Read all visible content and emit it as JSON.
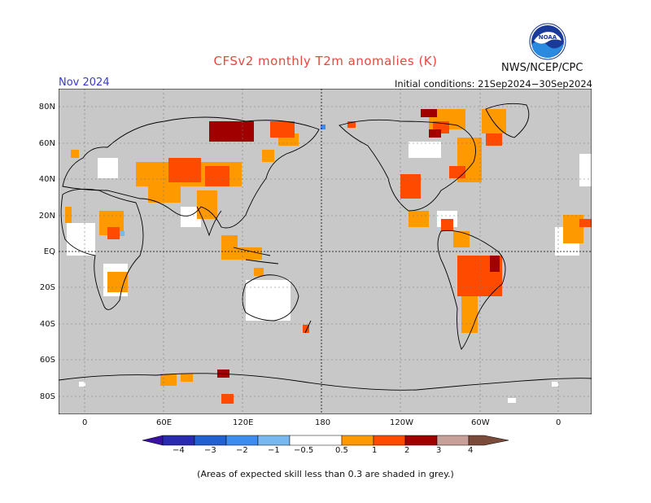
{
  "title": "CFSv2 monthly T2m anomalies (K)",
  "month": "Nov 2024",
  "initial_conditions": "Initial conditions: 21Sep2024−30Sep2024",
  "agency": "NWS/NCEP/CPC",
  "logo_text": "NOAA",
  "footnote": "(Areas of expected skill less than 0.3 are shaded in grey.)",
  "x_ticks": [
    "0",
    "60E",
    "120E",
    "180",
    "120W",
    "60W",
    "0"
  ],
  "y_ticks": [
    "80N",
    "60N",
    "40N",
    "20N",
    "EQ",
    "20S",
    "40S",
    "60S",
    "80S"
  ],
  "colors": {
    "grey": "#c8c8c8",
    "land_outline": "#000000",
    "anomaly_05_1": "#ff9900",
    "anomaly_1_2": "#ff4a00",
    "anomaly_2_3": "#a00000",
    "anomaly_3_4": "#c8a09a",
    "anomaly_gt4": "#7a4a3a",
    "anomaly_m05_m1": "#78b8f0",
    "anomaly_m1_m2": "#3c8cf0",
    "anomaly_m2_m3": "#2060d0",
    "anomaly_m3_m4": "#2a2ab0",
    "anomaly_lt_m4": "#3a10a0"
  },
  "colorbar": {
    "labels": [
      "−4",
      "−3",
      "−2",
      "−1",
      "−0.5",
      "0.5",
      "1",
      "2",
      "3",
      "4"
    ],
    "bins": [
      {
        "from": "<-4",
        "color": "#3a10a0"
      },
      {
        "from": "-4",
        "color": "#2a2ab0"
      },
      {
        "from": "-3",
        "color": "#2060d0"
      },
      {
        "from": "-2",
        "color": "#3c8cf0"
      },
      {
        "from": "-1",
        "color": "#78b8f0"
      },
      {
        "from": "-0.5",
        "color": "#ffffff"
      },
      {
        "from": "0.5",
        "color": "#ff9900"
      },
      {
        "from": "1",
        "color": "#ff4a00"
      },
      {
        "from": "2",
        "color": "#a00000"
      },
      {
        "from": "3",
        "color": "#c8a09a"
      },
      {
        "from": ">4",
        "color": "#7a4a3a"
      }
    ]
  }
}
